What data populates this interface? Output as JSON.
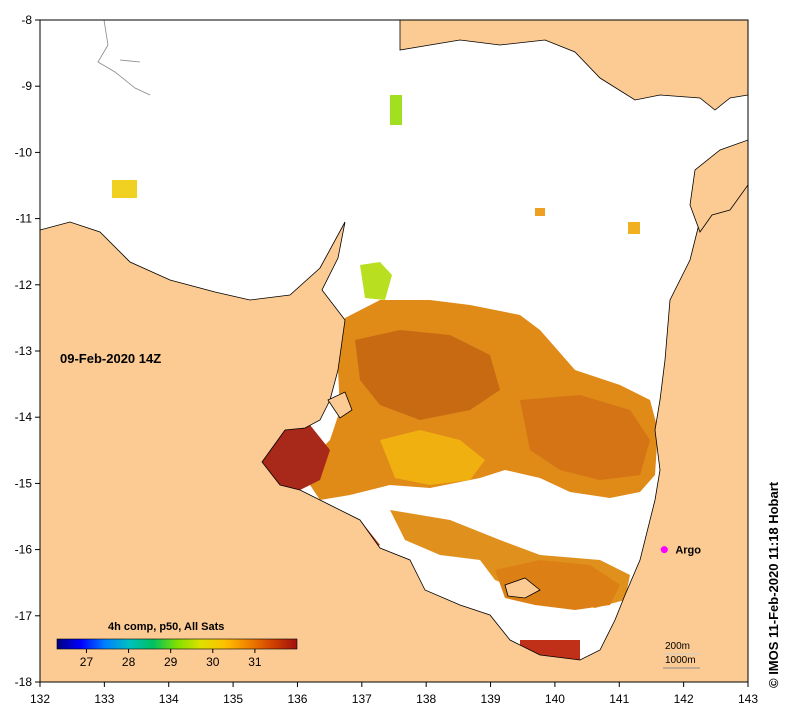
{
  "map": {
    "timestamp": "09-Feb-2020 14Z",
    "credit": "© IMOS 11-Feb-2020 11:18 Hobart",
    "x_axis": {
      "range": [
        132,
        143
      ],
      "ticks": [
        "132",
        "133",
        "134",
        "135",
        "136",
        "137",
        "138",
        "139",
        "140",
        "141",
        "142",
        "143"
      ]
    },
    "y_axis": {
      "range": [
        -18,
        -8
      ],
      "ticks": [
        "-8",
        "-9",
        "-10",
        "-11",
        "-12",
        "-13",
        "-14",
        "-15",
        "-16",
        "-17",
        "-18"
      ]
    },
    "marker": {
      "label": "Argo",
      "lon": 141.7,
      "lat": -16.0,
      "color": "#ff00ff"
    },
    "contours": [
      "200m",
      "1000m"
    ],
    "colorbar": {
      "title": "4h comp, p50, All Sats",
      "min": 26.3,
      "max": 32.0,
      "tick_labels": [
        "27",
        "28",
        "29",
        "30",
        "31"
      ],
      "colors": [
        "#000080",
        "#0000ff",
        "#0080ff",
        "#00c0c0",
        "#00c060",
        "#80e000",
        "#e0e000",
        "#ffc000",
        "#f08000",
        "#d04000",
        "#a01010"
      ]
    },
    "colors": {
      "land": "#fccb94",
      "water": "#ffffff",
      "sst_mid": "#e08010",
      "sst_warm": "#c85010",
      "sst_hot": "#a01818",
      "sst_cool": "#f0b000"
    }
  }
}
